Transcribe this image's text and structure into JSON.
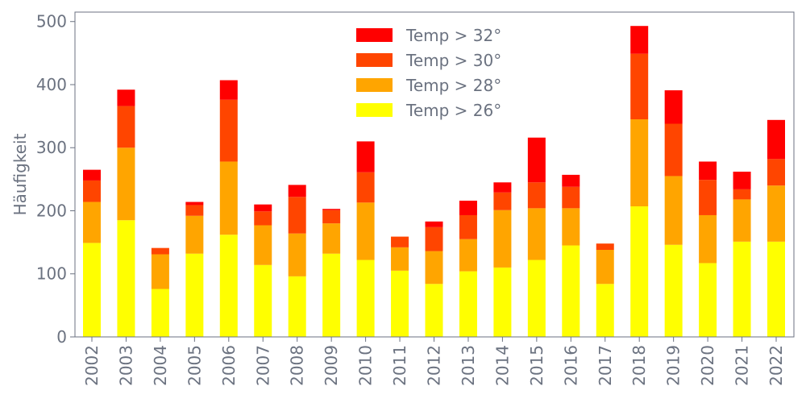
{
  "chart_data": {
    "type": "bar",
    "stacked": true,
    "title": "",
    "xlabel": "",
    "ylabel": "Häufigkeit",
    "ylim": [
      0,
      515
    ],
    "yticks": [
      0,
      100,
      200,
      300,
      400,
      500
    ],
    "grid": false,
    "legend_position": "top-center",
    "categories": [
      "2002",
      "2003",
      "2004",
      "2005",
      "2006",
      "2007",
      "2008",
      "2009",
      "2010",
      "2011",
      "2012",
      "2013",
      "2014",
      "2015",
      "2016",
      "2017",
      "2018",
      "2019",
      "2020",
      "2021",
      "2022"
    ],
    "series": [
      {
        "name": "Temp > 26°",
        "color": "#ffff00",
        "values": [
          149,
          185,
          76,
          132,
          162,
          114,
          96,
          132,
          122,
          105,
          84,
          104,
          110,
          122,
          145,
          84,
          207,
          146,
          117,
          151,
          151
        ]
      },
      {
        "name": "Temp > 28°",
        "color": "#ffa500",
        "values": [
          65,
          115,
          55,
          60,
          116,
          63,
          68,
          48,
          91,
          37,
          52,
          51,
          91,
          82,
          59,
          54,
          138,
          109,
          76,
          67,
          89
        ]
      },
      {
        "name": "Temp > 30°",
        "color": "#ff4500",
        "values": [
          34,
          66,
          10,
          17,
          98,
          22,
          58,
          21,
          48,
          17,
          38,
          38,
          28,
          41,
          34,
          10,
          104,
          83,
          56,
          16,
          42
        ]
      },
      {
        "name": "Temp > 32°",
        "color": "#ff0000",
        "values": [
          17,
          26,
          0,
          5,
          31,
          11,
          19,
          2,
          49,
          0,
          9,
          23,
          16,
          71,
          19,
          0,
          44,
          53,
          29,
          28,
          62
        ]
      }
    ],
    "legend_order": [
      "Temp > 32°",
      "Temp > 30°",
      "Temp > 28°",
      "Temp > 26°"
    ]
  },
  "colors": {
    "axis": "#6b7280",
    "text": "#6b7280",
    "background": "#ffffff"
  }
}
